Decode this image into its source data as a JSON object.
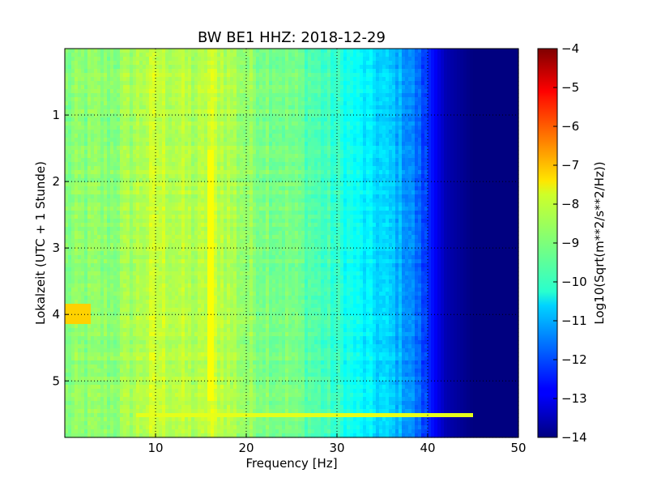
{
  "chart_data": {
    "type": "heatmap",
    "title": "BW BE1 HHZ: 2018-12-29",
    "xlabel": "Frequency [Hz]",
    "ylabel": "Lokalzeit (UTC + 1 Stunde)",
    "xlim": [
      0,
      50
    ],
    "ylim": [
      5.85,
      0
    ],
    "x_ticks": [
      10,
      20,
      30,
      40,
      50
    ],
    "y_ticks": [
      1,
      2,
      3,
      4,
      5
    ],
    "grid": true,
    "colorbar": {
      "label": "Log10(Sqrt(m**2/s**2/Hz))",
      "range": [
        -14,
        -4
      ],
      "ticks": [
        -4,
        -5,
        -6,
        -7,
        -8,
        -9,
        -10,
        -11,
        -12,
        -13,
        -14
      ],
      "colormap": "jet"
    },
    "frequency_profile_hz": [
      0,
      2,
      5,
      10,
      15,
      16,
      20,
      25,
      30,
      33,
      36,
      38,
      40,
      42,
      45,
      50
    ],
    "frequency_profile_log10": [
      -9.0,
      -8.9,
      -8.9,
      -8.3,
      -8.6,
      -8.2,
      -8.8,
      -9.1,
      -9.8,
      -10.4,
      -10.8,
      -11.3,
      -12.3,
      -13.5,
      -14.0,
      -14.0
    ],
    "features": [
      {
        "label": "narrowband line",
        "frequency_hz": 16,
        "time_range": [
          1.5,
          5.3
        ],
        "log10": -7.8
      },
      {
        "label": "broadband event",
        "frequency_hz": [
          0,
          3
        ],
        "time": 4.0,
        "log10": -7.3
      },
      {
        "label": "transient line",
        "frequency_range_hz": [
          8,
          45
        ],
        "time": 5.52,
        "log10": -8.0
      }
    ]
  }
}
